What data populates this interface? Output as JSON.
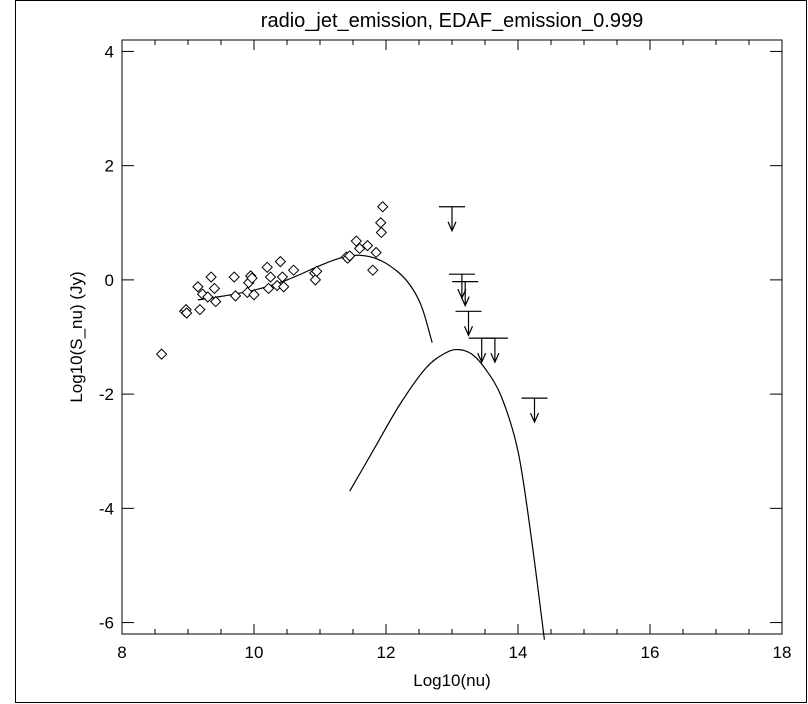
{
  "chart_data": {
    "type": "scatter",
    "title": "radio_jet_emission, EDAF_emission_0.999",
    "xlabel": "Log10(nu)",
    "ylabel": "Log10(S_nu) (Jy)",
    "xlim": [
      8,
      18
    ],
    "ylim": [
      -6.2,
      4.2
    ],
    "x_ticks": [
      "8",
      "10",
      "12",
      "14",
      "16",
      "18"
    ],
    "y_ticks": [
      "4",
      "2",
      "0",
      "-2",
      "-4",
      "-6"
    ],
    "x_tick_values": [
      8,
      10,
      12,
      14,
      16,
      18
    ],
    "y_tick_values": [
      4,
      2,
      0,
      -2,
      -4,
      -6
    ],
    "grid": false,
    "series": [
      {
        "kind": "diamond-markers",
        "points": [
          [
            8.6,
            -1.3
          ],
          [
            8.95,
            -0.55
          ],
          [
            8.97,
            -0.52
          ],
          [
            8.98,
            -0.58
          ],
          [
            9.15,
            -0.12
          ],
          [
            9.18,
            -0.52
          ],
          [
            9.22,
            -0.25
          ],
          [
            9.3,
            -0.3
          ],
          [
            9.35,
            0.05
          ],
          [
            9.4,
            -0.15
          ],
          [
            9.42,
            -0.38
          ],
          [
            9.7,
            0.05
          ],
          [
            9.72,
            -0.28
          ],
          [
            9.9,
            -0.22
          ],
          [
            9.92,
            -0.05
          ],
          [
            9.95,
            0.07
          ],
          [
            9.97,
            0.03
          ],
          [
            10.0,
            -0.26
          ],
          [
            10.2,
            0.22
          ],
          [
            10.22,
            -0.15
          ],
          [
            10.25,
            0.05
          ],
          [
            10.35,
            -0.1
          ],
          [
            10.4,
            0.32
          ],
          [
            10.43,
            0.05
          ],
          [
            10.45,
            -0.12
          ],
          [
            10.6,
            0.17
          ],
          [
            10.92,
            0.12
          ],
          [
            10.93,
            0.0
          ],
          [
            10.95,
            0.15
          ],
          [
            11.4,
            0.4
          ],
          [
            11.42,
            0.38
          ],
          [
            11.45,
            0.42
          ],
          [
            11.55,
            0.68
          ],
          [
            11.6,
            0.55
          ],
          [
            11.72,
            0.6
          ],
          [
            11.8,
            0.17
          ],
          [
            11.85,
            0.48
          ],
          [
            11.92,
            1.0
          ],
          [
            11.93,
            0.83
          ],
          [
            11.95,
            1.28
          ]
        ]
      },
      {
        "kind": "model-curve",
        "points": [
          [
            9.15,
            -0.35
          ],
          [
            9.5,
            -0.29
          ],
          [
            10.0,
            -0.18
          ],
          [
            10.5,
            0.0
          ],
          [
            11.0,
            0.25
          ],
          [
            11.3,
            0.38
          ],
          [
            11.6,
            0.43
          ],
          [
            11.9,
            0.35
          ],
          [
            12.2,
            0.12
          ],
          [
            12.4,
            -0.15
          ],
          [
            12.55,
            -0.5
          ],
          [
            12.7,
            -1.1
          ]
        ]
      },
      {
        "kind": "model-curve",
        "points": [
          [
            11.45,
            -3.7
          ],
          [
            11.8,
            -3.0
          ],
          [
            12.2,
            -2.2
          ],
          [
            12.6,
            -1.55
          ],
          [
            12.9,
            -1.28
          ],
          [
            13.1,
            -1.22
          ],
          [
            13.3,
            -1.3
          ],
          [
            13.5,
            -1.55
          ],
          [
            13.75,
            -2.05
          ],
          [
            14.0,
            -3.0
          ],
          [
            14.2,
            -4.5
          ],
          [
            14.4,
            -6.3
          ]
        ]
      },
      {
        "kind": "upper-limits",
        "points": [
          [
            13.0,
            1.28
          ],
          [
            13.15,
            0.1
          ],
          [
            13.2,
            -0.03
          ],
          [
            13.25,
            -0.55
          ],
          [
            13.45,
            -1.02
          ],
          [
            13.65,
            -1.02
          ],
          [
            14.25,
            -2.07
          ]
        ]
      }
    ]
  }
}
